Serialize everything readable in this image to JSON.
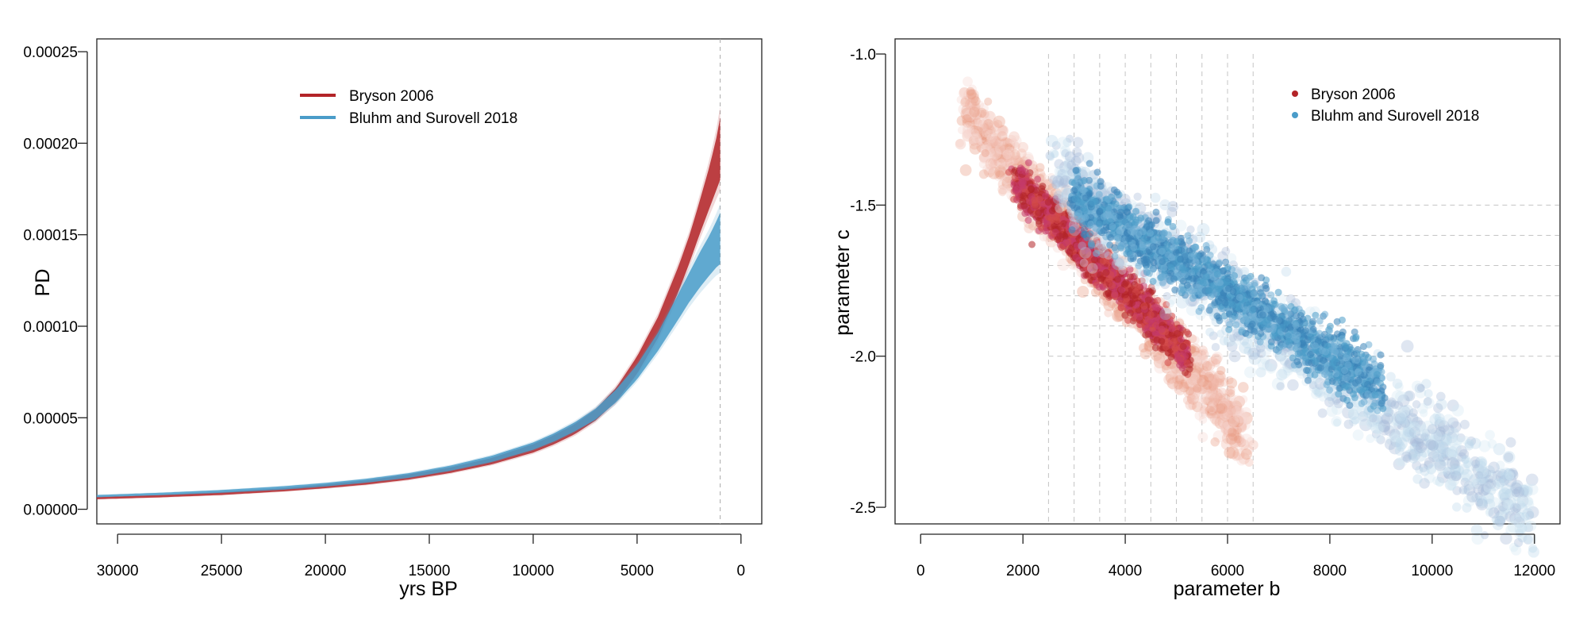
{
  "chart_data": [
    {
      "type": "area",
      "xlabel": "yrs BP",
      "ylabel": "PD",
      "xlim": [
        31000,
        -1000
      ],
      "ylim": [
        -8e-06,
        0.000257
      ],
      "x_reversed": true,
      "x_ticks": [
        30000,
        25000,
        20000,
        15000,
        10000,
        5000,
        0
      ],
      "y_ticks": [
        0.0,
        5e-05,
        0.0001,
        0.00015,
        0.0002,
        0.00025
      ],
      "x_tick_labels": [
        "30000",
        "25000",
        "20000",
        "15000",
        "10000",
        "5000",
        "0"
      ],
      "y_tick_labels": [
        "0.00000",
        "0.00005",
        "0.00010",
        "0.00015",
        "0.00020",
        "0.00025"
      ],
      "reference_line_x": 1000,
      "legend_position": "top-center",
      "series": [
        {
          "name": "Bryson 2006",
          "color": "#b32428",
          "x": [
            31000,
            28000,
            25000,
            22000,
            20000,
            18000,
            16000,
            14000,
            12000,
            10000,
            9000,
            8000,
            7000,
            6000,
            5000,
            4000,
            3000,
            2500,
            2000,
            1500,
            1200,
            1000
          ],
          "lower": [
            5.5e-06,
            6.5e-06,
            7.8e-06,
            9.8e-06,
            1.15e-05,
            1.35e-05,
            1.62e-05,
            1.98e-05,
            2.45e-05,
            3.1e-05,
            3.55e-05,
            4.1e-05,
            4.85e-05,
            5.9e-05,
            7.4e-05,
            9.35e-05,
            0.000119,
            0.000134,
            0.00015,
            0.000165,
            0.000174,
            0.00018
          ],
          "upper": [
            6.7e-06,
            7.8e-06,
            9.3e-06,
            1.15e-05,
            1.35e-05,
            1.58e-05,
            1.9e-05,
            2.28e-05,
            2.8e-05,
            3.55e-05,
            4.05e-05,
            4.65e-05,
            5.45e-05,
            6.65e-05,
            8.35e-05,
            0.000105,
            0.000133,
            0.000149,
            0.000168,
            0.000188,
            0.000202,
            0.000214
          ]
        },
        {
          "name": "Bluhm and Surovell 2018",
          "color": "#4a9cc9",
          "x": [
            31000,
            28000,
            25000,
            22000,
            20000,
            18000,
            16000,
            14000,
            12000,
            10000,
            9000,
            8000,
            7000,
            6000,
            5000,
            4000,
            3000,
            2500,
            2000,
            1500,
            1200,
            1000
          ],
          "lower": [
            6.6e-06,
            7.7e-06,
            9e-06,
            1.08e-05,
            1.25e-05,
            1.46e-05,
            1.72e-05,
            2.1e-05,
            2.58e-05,
            3.25e-05,
            3.7e-05,
            4.25e-05,
            4.9e-05,
            5.85e-05,
            7.1e-05,
            8.65e-05,
            0.000104,
            0.000113,
            0.000121,
            0.000128,
            0.000132,
            0.000134
          ],
          "upper": [
            7.8e-06,
            9e-06,
            1.05e-05,
            1.26e-05,
            1.44e-05,
            1.67e-05,
            1.97e-05,
            2.38e-05,
            2.92e-05,
            3.65e-05,
            4.15e-05,
            4.75e-05,
            5.5e-05,
            6.55e-05,
            7.9e-05,
            9.65e-05,
            0.000118,
            0.000129,
            0.00014,
            0.00015,
            0.000157,
            0.000162
          ]
        }
      ]
    },
    {
      "type": "scatter",
      "xlabel": "parameter b",
      "ylabel": "parameter c",
      "xlim": [
        -500,
        12500
      ],
      "ylim": [
        -2.555,
        -0.95
      ],
      "x_ticks": [
        0,
        2000,
        4000,
        6000,
        8000,
        10000,
        12000
      ],
      "y_ticks": [
        -1.0,
        -1.5,
        -2.0,
        -2.5
      ],
      "x_tick_labels": [
        "0",
        "2000",
        "4000",
        "6000",
        "8000",
        "10000",
        "12000"
      ],
      "y_tick_labels": [
        "-1.0",
        "-1.5",
        "-2.0",
        "-2.5"
      ],
      "grid_x": [
        2500,
        3000,
        3500,
        4000,
        4500,
        5000,
        5500,
        6000,
        6500
      ],
      "grid_y": [
        -1.5,
        -1.6,
        -1.7,
        -1.8,
        -1.9,
        -2.0
      ],
      "legend_position": "top-right",
      "series": [
        {
          "name": "Bryson 2006",
          "color": "#b32428",
          "center_line": [
            [
              900,
              -1.2
            ],
            [
              6300,
              -2.25
            ]
          ],
          "core_line": [
            [
              1900,
              -1.43
            ],
            [
              5200,
              -1.99
            ]
          ],
          "spread_c": 0.05,
          "core_spread_c": 0.032
        },
        {
          "name": "Bluhm and Surovell 2018",
          "color": "#4a9cc9",
          "center_line": [
            [
              2700,
              -1.42
            ],
            [
              11900,
              -2.52
            ]
          ],
          "core_line": [
            [
              3000,
              -1.48
            ],
            [
              9000,
              -2.1
            ]
          ],
          "spread_c": 0.07,
          "core_spread_c": 0.045
        }
      ]
    }
  ]
}
